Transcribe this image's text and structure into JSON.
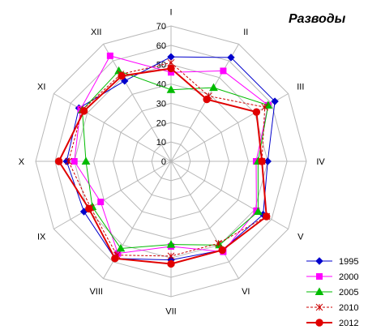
{
  "chart_data": {
    "type": "radar",
    "title": "Разводы",
    "categories": [
      "I",
      "II",
      "III",
      "IV",
      "V",
      "VI",
      "VII",
      "VIII",
      "IX",
      "X",
      "XI",
      "XII"
    ],
    "rlim": [
      0,
      70
    ],
    "ticks": [
      0,
      10,
      20,
      30,
      40,
      50,
      60,
      70
    ],
    "grid": true,
    "legend_position": "bottom-right",
    "series": [
      {
        "name": "1995",
        "color": "#0000cc",
        "marker": "diamond",
        "dashed": false,
        "width": 1,
        "values": [
          54,
          62,
          62,
          50,
          55,
          53,
          51,
          58,
          52,
          54,
          55,
          48
        ]
      },
      {
        "name": "2000",
        "color": "#ff00ff",
        "marker": "square",
        "dashed": false,
        "width": 1,
        "values": [
          46,
          54,
          58,
          44,
          51,
          54,
          44,
          55,
          42,
          50,
          54,
          63
        ]
      },
      {
        "name": "2005",
        "color": "#00bb00",
        "marker": "triangle",
        "dashed": false,
        "width": 1,
        "values": [
          37,
          44,
          58,
          45,
          52,
          50,
          43,
          52,
          47,
          44,
          53,
          54
        ]
      },
      {
        "name": "2010",
        "color": "#cc0000",
        "marker": "asterisk",
        "dashed": true,
        "width": 1,
        "values": [
          51,
          39,
          56,
          47,
          57,
          49,
          49,
          56,
          48,
          53,
          53,
          52
        ]
      },
      {
        "name": "2012",
        "color": "#e00000",
        "marker": "circle",
        "dashed": false,
        "width": 2,
        "values": [
          48,
          37,
          51,
          47,
          57,
          53,
          53,
          58,
          49,
          58,
          52,
          51
        ]
      }
    ]
  }
}
